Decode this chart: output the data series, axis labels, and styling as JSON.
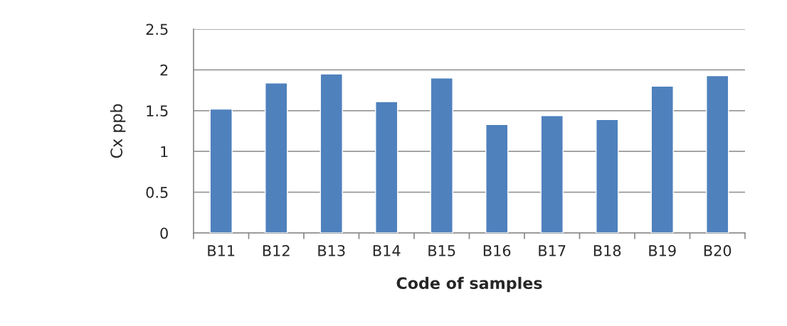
{
  "chart_data": {
    "type": "bar",
    "xlabel": "Code of samples",
    "ylabel": "Cx ppb",
    "categories": [
      "B11",
      "B12",
      "B13",
      "B14",
      "B15",
      "B16",
      "B17",
      "B18",
      "B19",
      "B20"
    ],
    "values": [
      1.52,
      1.84,
      1.95,
      1.61,
      1.9,
      1.33,
      1.44,
      1.39,
      1.8,
      1.93
    ],
    "color": "#4f81bd",
    "ylim": [
      0,
      2.5
    ],
    "yticks": [
      0,
      0.5,
      1,
      1.5,
      2,
      2.5
    ],
    "grid": "y",
    "legend": false
  }
}
